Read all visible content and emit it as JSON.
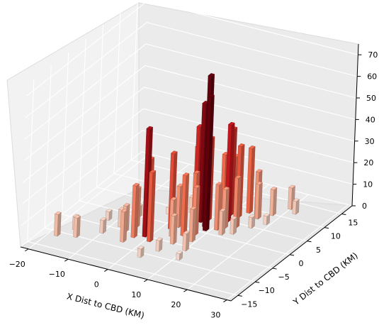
{
  "chart_data": {
    "type": "bar3d",
    "title": "",
    "xlabel": "X Dist to CBD (KM)",
    "ylabel": "Y Dist to CBD (KM)",
    "zlabel": "",
    "x_ticks": [
      "−20",
      "−10",
      "0",
      "10",
      "20",
      "30"
    ],
    "y_ticks": [
      "−15",
      "−10",
      "−5",
      "0",
      "5",
      "10",
      "15"
    ],
    "z_ticks": [
      "0",
      "10",
      "20",
      "30",
      "40",
      "50",
      "60",
      "70"
    ],
    "xlim": [
      -22,
      31
    ],
    "ylim": [
      -17,
      18
    ],
    "zlim": [
      0,
      75
    ],
    "grid": true,
    "colormap": "Reds",
    "bars": [
      {
        "x": 8,
        "y": 2,
        "z": 70
      },
      {
        "x": 9,
        "y": 1,
        "z": 62
      },
      {
        "x": 6,
        "y": 3,
        "z": 55
      },
      {
        "x": -1,
        "y": -5,
        "z": 50
      },
      {
        "x": 11,
        "y": 5,
        "z": 45
      },
      {
        "x": 4,
        "y": 4,
        "z": 42
      },
      {
        "x": 10,
        "y": 7,
        "z": 40
      },
      {
        "x": 7,
        "y": 4,
        "z": 38
      },
      {
        "x": 2,
        "y": -1,
        "z": 35
      },
      {
        "x": 12,
        "y": 7,
        "z": 33
      },
      {
        "x": -2,
        "y": -3,
        "z": 33
      },
      {
        "x": 1,
        "y": -6,
        "z": 32
      },
      {
        "x": 3,
        "y": 5,
        "z": 31
      },
      {
        "x": 13,
        "y": 9,
        "z": 30
      },
      {
        "x": 9,
        "y": 6,
        "z": 29
      },
      {
        "x": 6,
        "y": -2,
        "z": 28
      },
      {
        "x": 7,
        "y": 0,
        "z": 27
      },
      {
        "x": 10,
        "y": 8,
        "z": 26
      },
      {
        "x": 5,
        "y": 6,
        "z": 25
      },
      {
        "x": -3,
        "y": -6,
        "z": 24
      },
      {
        "x": 14,
        "y": 4,
        "z": 23
      },
      {
        "x": 8,
        "y": -1,
        "z": 22
      },
      {
        "x": 11,
        "y": 2,
        "z": 21
      },
      {
        "x": 15,
        "y": 9,
        "z": 20
      },
      {
        "x": 3,
        "y": 0,
        "z": 19
      },
      {
        "x": -5,
        "y": -3,
        "z": 18
      },
      {
        "x": 12,
        "y": 3,
        "z": 18
      },
      {
        "x": 4,
        "y": -3,
        "z": 17
      },
      {
        "x": 16,
        "y": 8,
        "z": 16
      },
      {
        "x": 9,
        "y": -3,
        "z": 15
      },
      {
        "x": -4,
        "y": -8,
        "z": 14
      },
      {
        "x": 6,
        "y": -5,
        "z": 13
      },
      {
        "x": 18,
        "y": 10,
        "z": 12
      },
      {
        "x": -6,
        "y": -5,
        "z": 12
      },
      {
        "x": 13,
        "y": 1,
        "z": 11
      },
      {
        "x": 20,
        "y": 13,
        "z": 10
      },
      {
        "x": -18,
        "y": -11,
        "z": 10
      },
      {
        "x": -14,
        "y": -10,
        "z": 9
      },
      {
        "x": 0,
        "y": 2,
        "z": 9
      },
      {
        "x": 10,
        "y": -6,
        "z": 8
      },
      {
        "x": -8,
        "y": -4,
        "z": 8
      },
      {
        "x": 15,
        "y": 2,
        "z": 7
      },
      {
        "x": 2,
        "y": 5,
        "z": 7
      },
      {
        "x": -10,
        "y": -7,
        "z": 6
      },
      {
        "x": 22,
        "y": 12,
        "z": 6
      },
      {
        "x": -16,
        "y": -8,
        "z": 6
      },
      {
        "x": 5,
        "y": -8,
        "z": 5
      },
      {
        "x": 17,
        "y": 5,
        "z": 5
      },
      {
        "x": -7,
        "y": 0,
        "z": 5
      },
      {
        "x": 3,
        "y": -11,
        "z": 4
      },
      {
        "x": -12,
        "y": -3,
        "z": 4
      },
      {
        "x": 19,
        "y": 7,
        "z": 4
      },
      {
        "x": -2,
        "y": 3,
        "z": 3
      },
      {
        "x": 11,
        "y": -9,
        "z": 3
      }
    ]
  }
}
